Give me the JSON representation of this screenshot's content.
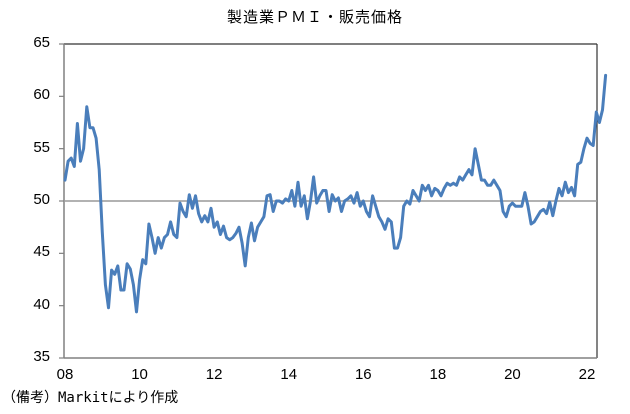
{
  "title": "製造業ＰＭＩ・販売価格",
  "note": "（備考）Markitにより作成",
  "colors": {
    "line": "#4a7ebb",
    "reference": "#999999",
    "axis": "#808080",
    "frame": "#333333"
  },
  "chart_data": {
    "type": "line",
    "title": "製造業ＰＭＩ・販売価格",
    "xlabel": "",
    "ylabel": "",
    "ylim": [
      35,
      65
    ],
    "yticks": [
      35,
      40,
      45,
      50,
      55,
      60,
      65
    ],
    "xticks": [
      "08",
      "10",
      "12",
      "14",
      "16",
      "18",
      "20",
      "22"
    ],
    "reference_line": 50,
    "grid": false,
    "legend": "none",
    "x_start": "2008-01",
    "x_frequency": "monthly",
    "series": [
      {
        "name": "製造業PMI・販売価格",
        "values": [
          52.0,
          53.8,
          54.1,
          53.3,
          57.4,
          53.8,
          55.0,
          59.0,
          57.0,
          57.0,
          56.0,
          53.0,
          47.0,
          42.0,
          39.8,
          43.4,
          43.0,
          43.8,
          41.5,
          41.5,
          44.0,
          43.5,
          42.0,
          39.4,
          42.5,
          44.4,
          44.0,
          47.8,
          46.5,
          45.0,
          46.5,
          45.5,
          46.5,
          46.8,
          48.0,
          46.8,
          46.5,
          49.8,
          49.0,
          48.5,
          50.6,
          49.3,
          50.5,
          48.8,
          48.0,
          48.6,
          48.0,
          49.3,
          47.5,
          48.0,
          46.8,
          47.6,
          46.5,
          46.3,
          46.5,
          46.9,
          47.5,
          46.0,
          43.8,
          46.5,
          47.9,
          46.2,
          47.5,
          48.0,
          48.5,
          50.5,
          50.6,
          49.0,
          50.0,
          50.0,
          49.8,
          50.2,
          50.0,
          51.0,
          49.5,
          51.8,
          49.5,
          50.5,
          48.3,
          50.0,
          52.3,
          49.8,
          50.5,
          51.0,
          51.0,
          49.0,
          50.6,
          50.0,
          50.3,
          49.0,
          50.0,
          50.2,
          50.5,
          49.8,
          50.8,
          49.5,
          50.0,
          49.0,
          48.5,
          50.5,
          49.5,
          48.5,
          48.0,
          47.3,
          48.3,
          48.0,
          45.5,
          45.5,
          46.5,
          49.5,
          50.0,
          49.7,
          51.0,
          50.5,
          50.0,
          51.5,
          51.0,
          51.5,
          50.5,
          51.2,
          51.0,
          50.5,
          51.2,
          51.7,
          51.5,
          51.7,
          51.5,
          52.3,
          52.0,
          52.5,
          53.0,
          52.5,
          55.0,
          53.5,
          52.0,
          52.0,
          51.5,
          51.5,
          52.0,
          51.5,
          51.0,
          49.0,
          48.5,
          49.5,
          49.8,
          49.5,
          49.5,
          49.5,
          50.8,
          49.5,
          47.8,
          48.0,
          48.5,
          49.0,
          49.2,
          48.8,
          49.9,
          48.6,
          50.0,
          51.2,
          50.5,
          51.8,
          50.8,
          51.3,
          50.5,
          53.5,
          53.7,
          55.0,
          56.0,
          55.5,
          55.3,
          58.5,
          57.5,
          58.7,
          62.0
        ]
      }
    ]
  }
}
